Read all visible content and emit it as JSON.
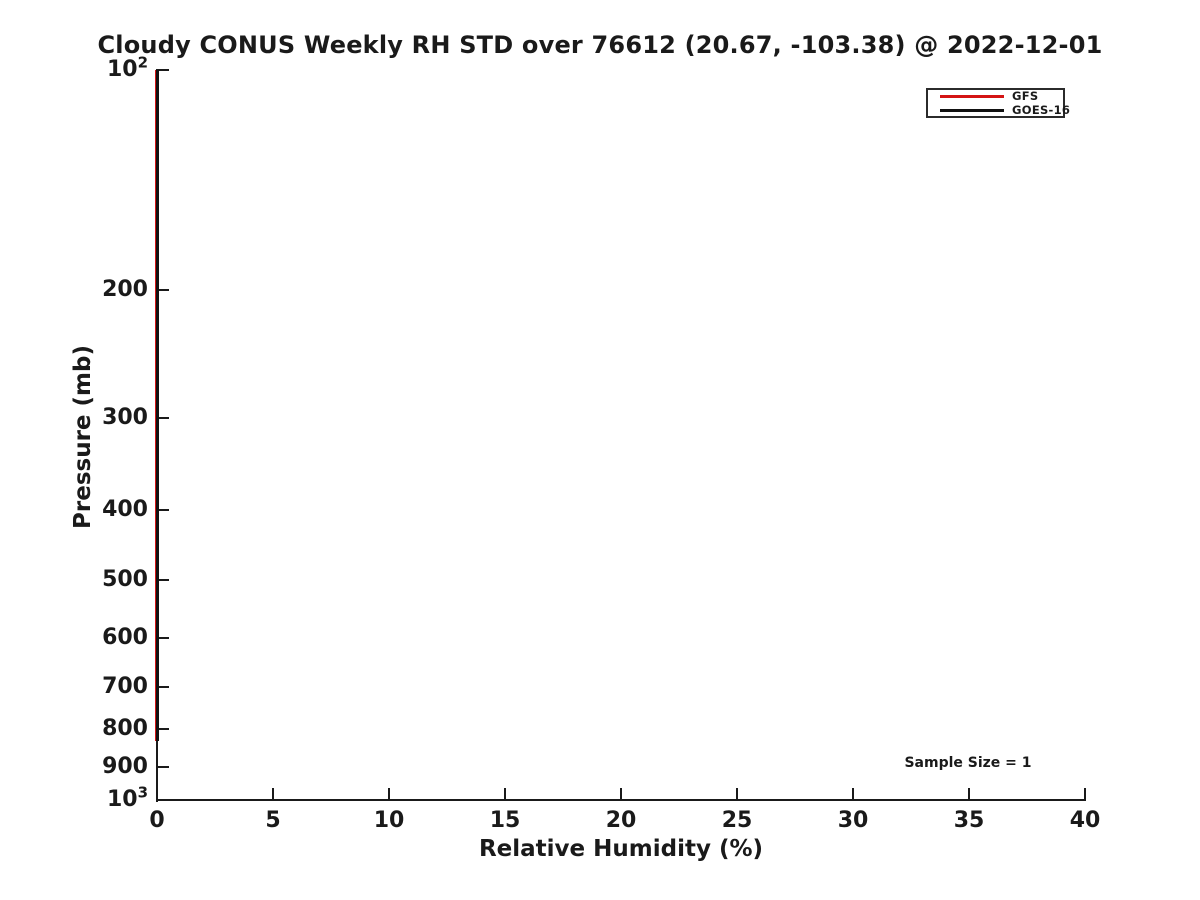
{
  "chart_data": {
    "type": "line",
    "title": "Cloudy CONUS Weekly RH STD over 76612 (20.67, -103.38) @ 2022-12-01",
    "xlabel": "Relative Humidity (%)",
    "ylabel": "Pressure (mb)",
    "xlim": [
      0,
      40
    ],
    "ylim_pressure_mb": [
      1000,
      100
    ],
    "y_scale": "log",
    "grid": false,
    "x_ticks": [
      0,
      5,
      10,
      15,
      20,
      25,
      30,
      35,
      40
    ],
    "y_ticks": [
      {
        "p": 100,
        "base": "10",
        "sup": "2"
      },
      {
        "p": 200,
        "label": "200"
      },
      {
        "p": 300,
        "label": "300"
      },
      {
        "p": 400,
        "label": "400"
      },
      {
        "p": 500,
        "label": "500"
      },
      {
        "p": 600,
        "label": "600"
      },
      {
        "p": 700,
        "label": "700"
      },
      {
        "p": 800,
        "label": "800"
      },
      {
        "p": 900,
        "label": "900"
      },
      {
        "p": 1000,
        "base": "10",
        "sup": "3"
      }
    ],
    "legend": {
      "position": "upper right",
      "entries": [
        {
          "label": "GFS",
          "color": "#d41414"
        },
        {
          "label": "GOES-16",
          "color": "#111111"
        }
      ]
    },
    "series": [
      {
        "name": "GFS",
        "color": "#d41414",
        "rh_std_percent": [
          0,
          0
        ],
        "pressure_mb": [
          100,
          830
        ],
        "note": "vertical line at RH STD = 0, hidden beneath GOES-16 line along left spine"
      },
      {
        "name": "GOES-16",
        "color": "#111111",
        "rh_std_percent": [
          0,
          0
        ],
        "pressure_mb": [
          100,
          830
        ],
        "note": "vertical line at RH STD = 0 along left spine"
      }
    ],
    "annotation": "Sample Size = 1",
    "colors": {
      "axis": "#1a1a1a",
      "background": "#ffffff"
    }
  }
}
